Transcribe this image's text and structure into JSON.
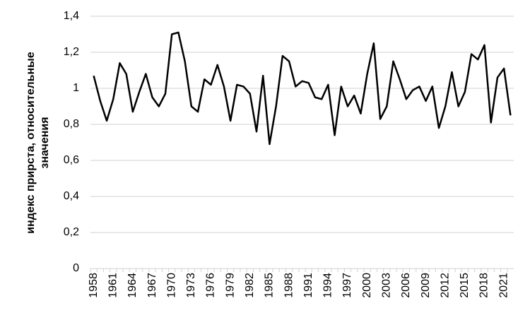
{
  "chart_data": {
    "type": "line",
    "ylabel": [
      "индекс прирста, относительные",
      "значения"
    ],
    "categories": [
      "1958",
      null,
      null,
      "1961",
      null,
      null,
      "1964",
      null,
      null,
      "1967",
      null,
      null,
      "1970",
      null,
      null,
      "1973",
      null,
      null,
      "1976",
      null,
      null,
      "1979",
      null,
      null,
      "1982",
      null,
      null,
      "1985",
      null,
      null,
      "1988",
      null,
      null,
      "1991",
      null,
      null,
      "1994",
      null,
      null,
      "1997",
      null,
      null,
      "2000",
      null,
      null,
      "2003",
      null,
      null,
      "2006",
      null,
      null,
      "2009",
      null,
      null,
      "2012",
      null,
      null,
      "2015",
      null,
      null,
      "2018",
      null,
      null,
      "2021",
      null
    ],
    "values": [
      1.07,
      0.93,
      0.82,
      0.94,
      1.14,
      1.08,
      0.87,
      0.98,
      1.08,
      0.95,
      0.9,
      0.97,
      1.3,
      1.31,
      1.15,
      0.9,
      0.87,
      1.05,
      1.02,
      1.13,
      1.01,
      0.82,
      1.02,
      1.01,
      0.97,
      0.76,
      1.07,
      0.69,
      0.9,
      1.18,
      1.15,
      1.01,
      1.04,
      1.03,
      0.95,
      0.94,
      1.02,
      0.74,
      1.01,
      0.9,
      0.96,
      0.86,
      1.08,
      1.25,
      0.83,
      0.9,
      1.15,
      1.05,
      0.94,
      0.99,
      1.01,
      0.93,
      1.01,
      0.78,
      0.9,
      1.09,
      0.9,
      0.98,
      1.19,
      1.16,
      1.24,
      0.81,
      1.06,
      1.11,
      0.85
    ],
    "color": "#000000",
    "ylim": [
      0,
      1.4
    ],
    "yticks": [
      0,
      {
        "value": 0.2,
        "label": "0,2"
      },
      {
        "value": 0.4,
        "label": "0,4"
      },
      {
        "value": 0.6,
        "label": "0,6"
      },
      {
        "value": 0.8,
        "label": "0,8"
      },
      1,
      {
        "value": 1.2,
        "label": "1,2"
      },
      {
        "value": 1.4,
        "label": "1,4"
      }
    ],
    "grid": true
  }
}
